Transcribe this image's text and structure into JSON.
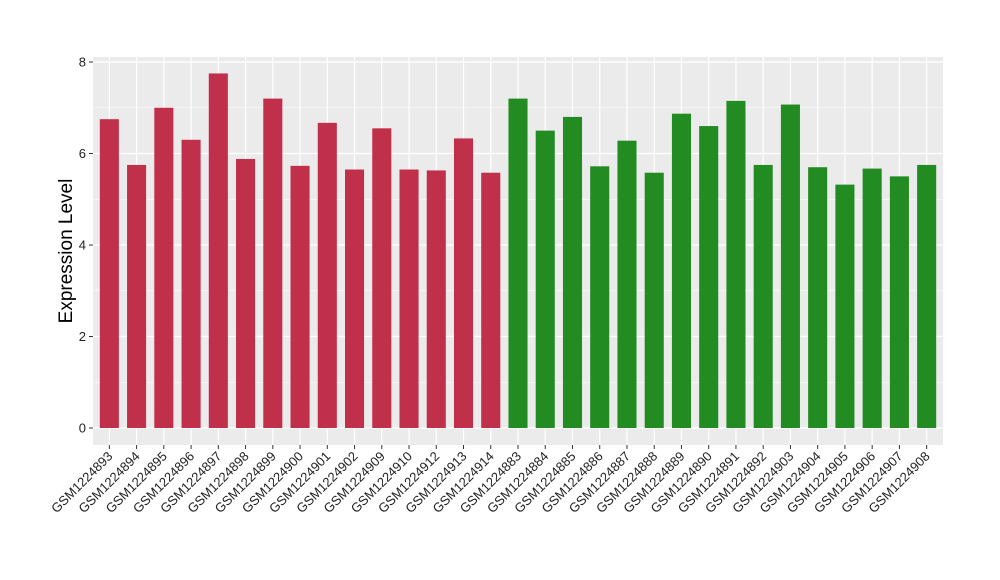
{
  "chart_data": {
    "type": "bar",
    "ylabel": "Expression Level",
    "xlabel": "",
    "ylim": [
      0,
      8
    ],
    "yticks": [
      0,
      2,
      4,
      6,
      8
    ],
    "grid": true,
    "categories": [
      "GSM1224893",
      "GSM1224894",
      "GSM1224895",
      "GSM1224896",
      "GSM1224897",
      "GSM1224898",
      "GSM1224899",
      "GSM1224900",
      "GSM1224901",
      "GSM1224902",
      "GSM1224909",
      "GSM1224910",
      "GSM1224912",
      "GSM1224913",
      "GSM1224914",
      "GSM1224883",
      "GSM1224884",
      "GSM1224885",
      "GSM1224886",
      "GSM1224887",
      "GSM1224888",
      "GSM1224889",
      "GSM1224890",
      "GSM1224891",
      "GSM1224892",
      "GSM1224903",
      "GSM1224904",
      "GSM1224905",
      "GSM1224906",
      "GSM1224907",
      "GSM1224908"
    ],
    "values": [
      6.75,
      5.75,
      7.0,
      6.3,
      7.75,
      5.88,
      7.2,
      5.73,
      6.67,
      5.65,
      6.55,
      5.65,
      5.63,
      6.33,
      5.58,
      7.2,
      6.5,
      6.8,
      5.72,
      6.28,
      5.58,
      6.87,
      6.6,
      7.15,
      5.75,
      7.07,
      5.7,
      5.32,
      5.67,
      5.5,
      5.75
    ],
    "groups": [
      {
        "color": "#c0304a",
        "count": 15
      },
      {
        "color": "#228b22",
        "count": 16
      }
    ],
    "panel_background": "#ebebeb",
    "grid_color": "#ffffff"
  }
}
